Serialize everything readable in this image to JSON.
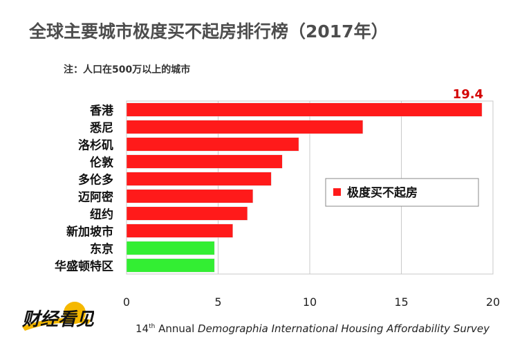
{
  "title": "全球主要城市极度买不起房排行榜（2017年）",
  "note": "注：人口在500万以上的城市",
  "chart_data": {
    "type": "bar",
    "orientation": "horizontal",
    "categories": [
      "香港",
      "悉尼",
      "洛杉矶",
      "伦敦",
      "多伦多",
      "迈阿密",
      "纽约",
      "新加坡市",
      "东京",
      "华盛顿特区"
    ],
    "values": [
      19.4,
      12.9,
      9.4,
      8.5,
      7.9,
      6.9,
      6.6,
      5.8,
      4.8,
      4.8
    ],
    "colors": [
      "#ff1a1a",
      "#ff1a1a",
      "#ff1a1a",
      "#ff1a1a",
      "#ff1a1a",
      "#ff1a1a",
      "#ff1a1a",
      "#ff1a1a",
      "#33ee33",
      "#33ee33"
    ],
    "xlim": [
      0,
      20
    ],
    "xticks": [
      "0",
      "5",
      "10",
      "15",
      "20"
    ],
    "data_labels": [
      {
        "index": 0,
        "text": "19.4"
      }
    ],
    "legend": {
      "label": "极度买不起房",
      "color": "#ff1a1a",
      "position": "right-middle"
    },
    "grid": true
  },
  "logo": {
    "text": "财经看见"
  },
  "footer": {
    "prefix": "14",
    "sup": "th",
    "annual": " Annual ",
    "italic": "Demographia International Housing Affordability Survey"
  }
}
